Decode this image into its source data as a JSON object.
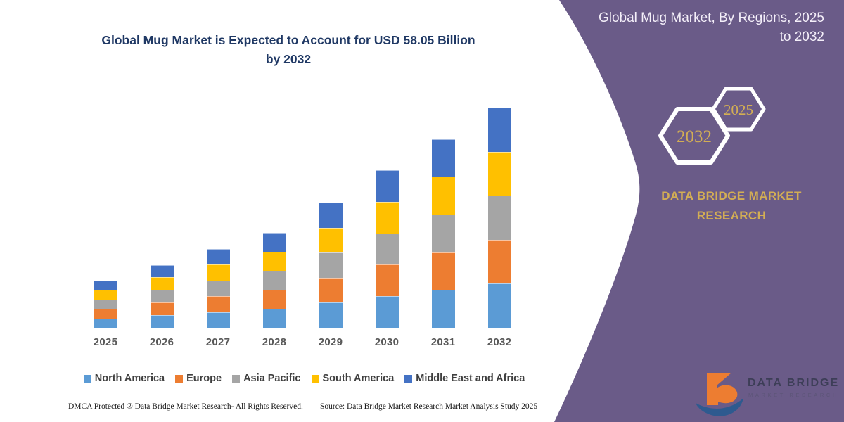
{
  "chart_data": {
    "type": "bar",
    "stacked": true,
    "title": "Global Mug Market is Expected to Account for USD 58.05 Billion by 2032",
    "categories": [
      "2025",
      "2026",
      "2027",
      "2028",
      "2029",
      "2030",
      "2031",
      "2032"
    ],
    "series": [
      {
        "name": "North America",
        "color": "#5B9BD5",
        "values": [
          2.48,
          3.32,
          4.16,
          5.0,
          6.6,
          8.3,
          9.96,
          11.61
        ]
      },
      {
        "name": "Europe",
        "color": "#ED7D31",
        "values": [
          2.48,
          3.32,
          4.16,
          5.0,
          6.6,
          8.3,
          9.96,
          11.61
        ]
      },
      {
        "name": "Asia Pacific",
        "color": "#A5A5A5",
        "values": [
          2.48,
          3.32,
          4.16,
          5.0,
          6.6,
          8.3,
          9.96,
          11.61
        ]
      },
      {
        "name": "South America",
        "color": "#FFC000",
        "values": [
          2.48,
          3.32,
          4.16,
          5.0,
          6.6,
          8.3,
          9.96,
          11.61
        ]
      },
      {
        "name": "Middle East and Africa",
        "color": "#4472C4",
        "values": [
          2.48,
          3.32,
          4.16,
          5.0,
          6.6,
          8.3,
          9.96,
          11.61
        ]
      }
    ],
    "totals": [
      12.4,
      16.6,
      20.8,
      25.0,
      33.0,
      41.5,
      49.8,
      58.05
    ],
    "ylabel": "",
    "xlabel": "",
    "ylim": [
      0,
      60
    ],
    "grid": false,
    "legend_position": "bottom",
    "yaxis_visible": false
  },
  "panel": {
    "title": "Global Mug Market, By Regions, 2025 to 2032",
    "hex_large_label": "2032",
    "hex_small_label": "2025",
    "brand_name": "DATA BRIDGE MARKET RESEARCH",
    "bg_color": "#6a5b88",
    "accent_gold": "#d3ae54"
  },
  "logo": {
    "title": "DATA BRIDGE",
    "subtitle": "MARKET RESEARCH",
    "mark_orange": "#ED7D31",
    "mark_blue": "#2E5A8F"
  },
  "footer": {
    "left": "DMCA Protected ® Data Bridge Market Research-  All Rights Reserved.",
    "right": "Source: Data Bridge Market Research  Market Analysis Study 2025"
  }
}
